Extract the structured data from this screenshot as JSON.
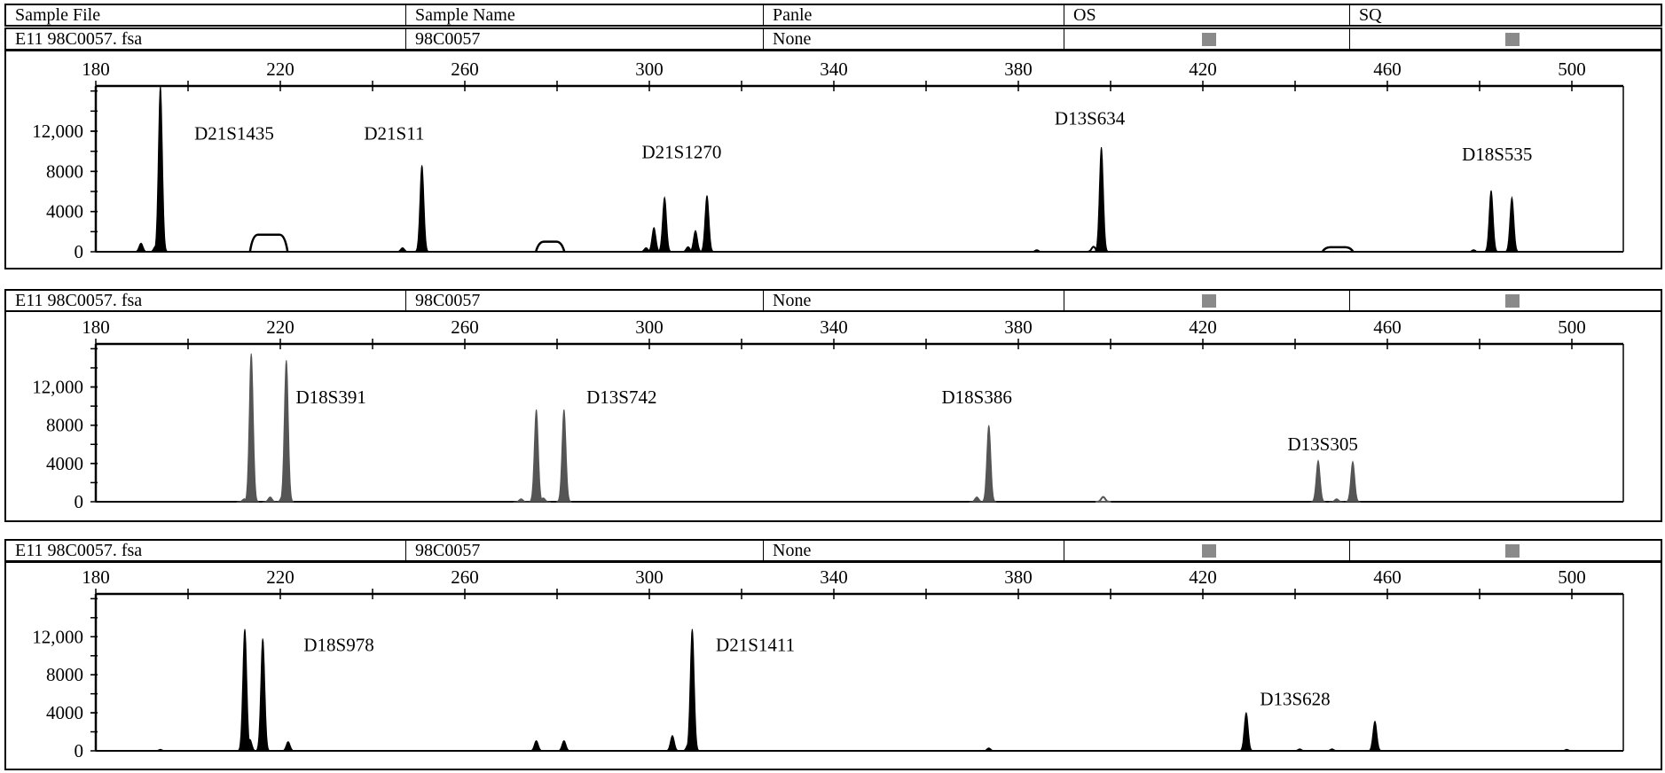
{
  "header": {
    "columns": [
      "Sample File",
      "Sample Name",
      "Panle",
      "OS",
      "SQ"
    ]
  },
  "rows": [
    {
      "sample_file": "E11 98C0057. fsa",
      "sample_name": "98C0057",
      "panel": "None",
      "os_status": "gray-square",
      "sq_status": "gray-square"
    },
    {
      "sample_file": "E11 98C0057. fsa",
      "sample_name": "98C0057",
      "panel": "None",
      "os_status": "gray-square",
      "sq_status": "gray-square"
    },
    {
      "sample_file": "E11 98C0057. fsa",
      "sample_name": "98C0057",
      "panel": "None",
      "os_status": "gray-square",
      "sq_status": "gray-square"
    }
  ],
  "colors": {
    "status_square": "#8a8a8a",
    "trace_black": "#000000",
    "trace_gray": "#555555"
  },
  "chart_data": [
    {
      "type": "line",
      "xlim": [
        180,
        511
      ],
      "ylim": [
        0,
        16500
      ],
      "xticks": [
        180,
        220,
        260,
        300,
        340,
        380,
        420,
        460,
        500
      ],
      "yticks": [
        0,
        4000,
        8000,
        12000
      ],
      "ytick_labels": [
        "0",
        "4000",
        "8000",
        "12,000"
      ],
      "grid": false,
      "color": "#000000",
      "peaks": [
        {
          "x": 189.8,
          "y": 860
        },
        {
          "x": 193.0,
          "y": 600
        },
        {
          "x": 194.0,
          "y": 16500
        },
        {
          "x": 246.5,
          "y": 400
        },
        {
          "x": 250.7,
          "y": 8600
        },
        {
          "x": 299.3,
          "y": 400
        },
        {
          "x": 301.0,
          "y": 2400
        },
        {
          "x": 303.3,
          "y": 5400
        },
        {
          "x": 308.4,
          "y": 500
        },
        {
          "x": 310.0,
          "y": 2100
        },
        {
          "x": 312.5,
          "y": 5600
        },
        {
          "x": 384.0,
          "y": 200
        },
        {
          "x": 396.3,
          "y": 500,
          "outline": true
        },
        {
          "x": 398.0,
          "y": 10400
        },
        {
          "x": 478.7,
          "y": 200
        },
        {
          "x": 482.5,
          "y": 6100
        },
        {
          "x": 487.0,
          "y": 5400
        }
      ],
      "plateaus": [
        {
          "x_start": 214,
          "x_end": 221,
          "y": 1700
        },
        {
          "x_start": 276,
          "x_end": 281,
          "y": 1000
        },
        {
          "x_start": 446.5,
          "x_end": 452,
          "y": 450
        }
      ],
      "annotations": [
        {
          "text": "D21S1435",
          "x": 210,
          "y": 11150
        },
        {
          "text": "D21S11",
          "x": 244.7,
          "y": 11150
        },
        {
          "text": "D21S1270",
          "x": 307,
          "y": 9300
        },
        {
          "text": "D13S634",
          "x": 395.5,
          "y": 12650
        },
        {
          "text": "D18S535",
          "x": 483.8,
          "y": 9100
        }
      ]
    },
    {
      "type": "line",
      "xlim": [
        180,
        511
      ],
      "ylim": [
        0,
        16500
      ],
      "xticks": [
        180,
        220,
        260,
        300,
        340,
        380,
        420,
        460,
        500
      ],
      "yticks": [
        0,
        4000,
        8000,
        12000
      ],
      "ytick_labels": [
        "0",
        "4000",
        "8000",
        "12,000"
      ],
      "grid": false,
      "color": "#555555",
      "peaks": [
        {
          "x": 212.2,
          "y": 300
        },
        {
          "x": 213.7,
          "y": 15500
        },
        {
          "x": 217.8,
          "y": 500
        },
        {
          "x": 220.6,
          "y": 800
        },
        {
          "x": 221.3,
          "y": 14800
        },
        {
          "x": 272.2,
          "y": 300
        },
        {
          "x": 275.5,
          "y": 9650
        },
        {
          "x": 277.0,
          "y": 400
        },
        {
          "x": 281.5,
          "y": 9650
        },
        {
          "x": 371.0,
          "y": 500
        },
        {
          "x": 373.6,
          "y": 8000
        },
        {
          "x": 398.4,
          "y": 500,
          "outline": true
        },
        {
          "x": 445.0,
          "y": 4300
        },
        {
          "x": 449.0,
          "y": 300
        },
        {
          "x": 452.5,
          "y": 4200
        }
      ],
      "plateaus": [],
      "annotations": [
        {
          "text": "D18S391",
          "x": 231,
          "y": 10300
        },
        {
          "text": "D13S742",
          "x": 294,
          "y": 10300
        },
        {
          "text": "D18S386",
          "x": 371,
          "y": 10300
        },
        {
          "text": "D13S305",
          "x": 446,
          "y": 5360
        }
      ]
    },
    {
      "type": "line",
      "xlim": [
        180,
        511
      ],
      "ylim": [
        0,
        16500
      ],
      "xticks": [
        180,
        220,
        260,
        300,
        340,
        380,
        420,
        460,
        500
      ],
      "yticks": [
        0,
        4000,
        8000,
        12000
      ],
      "ytick_labels": [
        "0",
        "4000",
        "8000",
        "12,000"
      ],
      "grid": false,
      "color": "#000000",
      "peaks": [
        {
          "x": 194.0,
          "y": 150
        },
        {
          "x": 212.3,
          "y": 12800
        },
        {
          "x": 213.4,
          "y": 1200
        },
        {
          "x": 216.2,
          "y": 11800
        },
        {
          "x": 221.7,
          "y": 960
        },
        {
          "x": 275.5,
          "y": 1070
        },
        {
          "x": 281.5,
          "y": 1070
        },
        {
          "x": 305.0,
          "y": 1600
        },
        {
          "x": 308.5,
          "y": 800
        },
        {
          "x": 309.3,
          "y": 12800
        },
        {
          "x": 373.6,
          "y": 300
        },
        {
          "x": 429.4,
          "y": 4000
        },
        {
          "x": 441.0,
          "y": 200
        },
        {
          "x": 448.0,
          "y": 200
        },
        {
          "x": 457.3,
          "y": 3100
        },
        {
          "x": 498.9,
          "y": 150
        }
      ],
      "plateaus": [],
      "annotations": [
        {
          "text": "D18S978",
          "x": 232.7,
          "y": 10500
        },
        {
          "text": "D21S1411",
          "x": 323,
          "y": 10500
        },
        {
          "text": "D13S628",
          "x": 440,
          "y": 4800
        }
      ]
    }
  ]
}
